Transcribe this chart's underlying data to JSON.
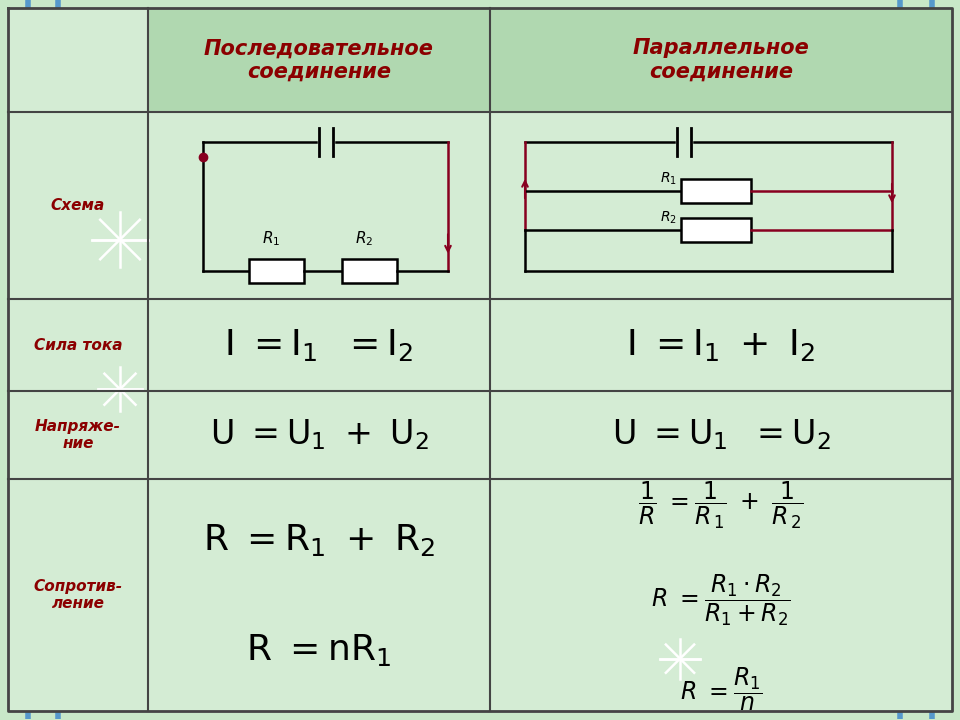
{
  "bg_color": "#c8e8c8",
  "header_bg": "#b0d8b0",
  "cell_bg": "#d4ecd4",
  "border_color": "#444444",
  "header_text_color": "#8b0000",
  "label_text_color": "#8b0000",
  "formula_text_color": "#000000",
  "title1": "Последовательное\nсоединение",
  "title2": "Параллельное\nсоединение",
  "row_labels": [
    "Схема",
    "Сила тока",
    "Напряже-\nние",
    "Сопротив-\nление"
  ],
  "blue_line_color": "#5599cc",
  "wire_color": "#000000",
  "arrow_color": "#880020"
}
